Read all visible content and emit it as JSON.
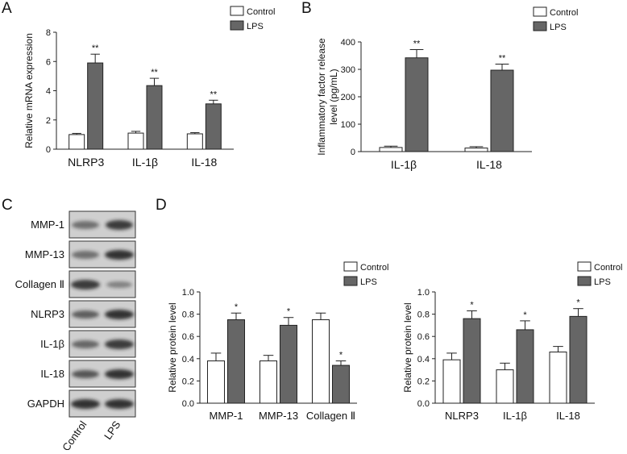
{
  "chart_data": [
    {
      "type": "bar",
      "panel": "A",
      "ylabel": [
        "Relative mRNA expression"
      ],
      "categories": [
        "NLRP3",
        "IL-1β",
        "IL-18"
      ],
      "series": [
        {
          "name": "Control",
          "color": "#ffffff",
          "values": [
            1.0,
            1.1,
            1.05
          ],
          "errors": [
            0.08,
            0.12,
            0.08
          ]
        },
        {
          "name": "LPS",
          "color": "#666666",
          "values": [
            5.9,
            4.35,
            3.1
          ],
          "errors": [
            0.6,
            0.5,
            0.25
          ],
          "significance": [
            "**",
            "**",
            "**"
          ]
        }
      ],
      "ylim": [
        0,
        8
      ],
      "yticks": [
        0,
        2,
        4,
        6,
        8
      ],
      "grid": false
    },
    {
      "type": "bar",
      "panel": "B",
      "ylabel": [
        "Inflammatory factor release",
        "level (pg/mL)"
      ],
      "categories": [
        "IL-1β",
        "IL-18"
      ],
      "series": [
        {
          "name": "Control",
          "color": "#ffffff",
          "values": [
            15,
            13
          ],
          "errors": [
            5,
            5
          ]
        },
        {
          "name": "LPS",
          "color": "#666666",
          "values": [
            342,
            297
          ],
          "errors": [
            30,
            22
          ],
          "significance": [
            "**",
            "**"
          ]
        }
      ],
      "ylim": [
        0,
        400
      ],
      "yticks": [
        0,
        100,
        200,
        300,
        400
      ],
      "grid": false
    },
    {
      "type": "bar",
      "panel": "D",
      "ylabel": [
        "Relative protein level"
      ],
      "categories": [
        "MMP-1",
        "MMP-13",
        "Collagen Ⅱ"
      ],
      "series": [
        {
          "name": "Control",
          "color": "#ffffff",
          "values": [
            0.38,
            0.38,
            0.75
          ],
          "errors": [
            0.07,
            0.05,
            0.06
          ]
        },
        {
          "name": "LPS",
          "color": "#666666",
          "values": [
            0.75,
            0.7,
            0.34
          ],
          "errors": [
            0.06,
            0.07,
            0.04
          ],
          "significance": [
            "*",
            "*",
            "*"
          ]
        }
      ],
      "ylim": [
        0,
        1
      ],
      "yticks": [
        {
          "value": 0,
          "label": "0.0"
        },
        0.2,
        0.4,
        0.6,
        0.8,
        {
          "value": 1,
          "label": "1.0"
        }
      ],
      "grid": false
    },
    {
      "type": "bar",
      "ylabel": [
        "Relative protein level"
      ],
      "categories": [
        "NLRP3",
        "IL-1β",
        "IL-18"
      ],
      "series": [
        {
          "name": "Control",
          "color": "#ffffff",
          "values": [
            0.39,
            0.3,
            0.46
          ],
          "errors": [
            0.06,
            0.06,
            0.05
          ]
        },
        {
          "name": "LPS",
          "color": "#666666",
          "values": [
            0.76,
            0.66,
            0.78
          ],
          "errors": [
            0.07,
            0.08,
            0.07
          ],
          "significance": [
            "*",
            "*",
            "*"
          ]
        }
      ],
      "ylim": [
        0,
        1
      ],
      "yticks": [
        {
          "value": 0,
          "label": "0.0"
        },
        0.2,
        0.4,
        0.6,
        0.8,
        {
          "value": 1,
          "label": "1.0"
        }
      ],
      "grid": false
    }
  ],
  "blot": {
    "panel": "C",
    "rows": [
      "MMP-1",
      "MMP-13",
      "Collagen Ⅱ",
      "NLRP3",
      "IL-1β",
      "IL-18",
      "GAPDH"
    ],
    "lanes": [
      "Control",
      "LPS"
    ]
  }
}
